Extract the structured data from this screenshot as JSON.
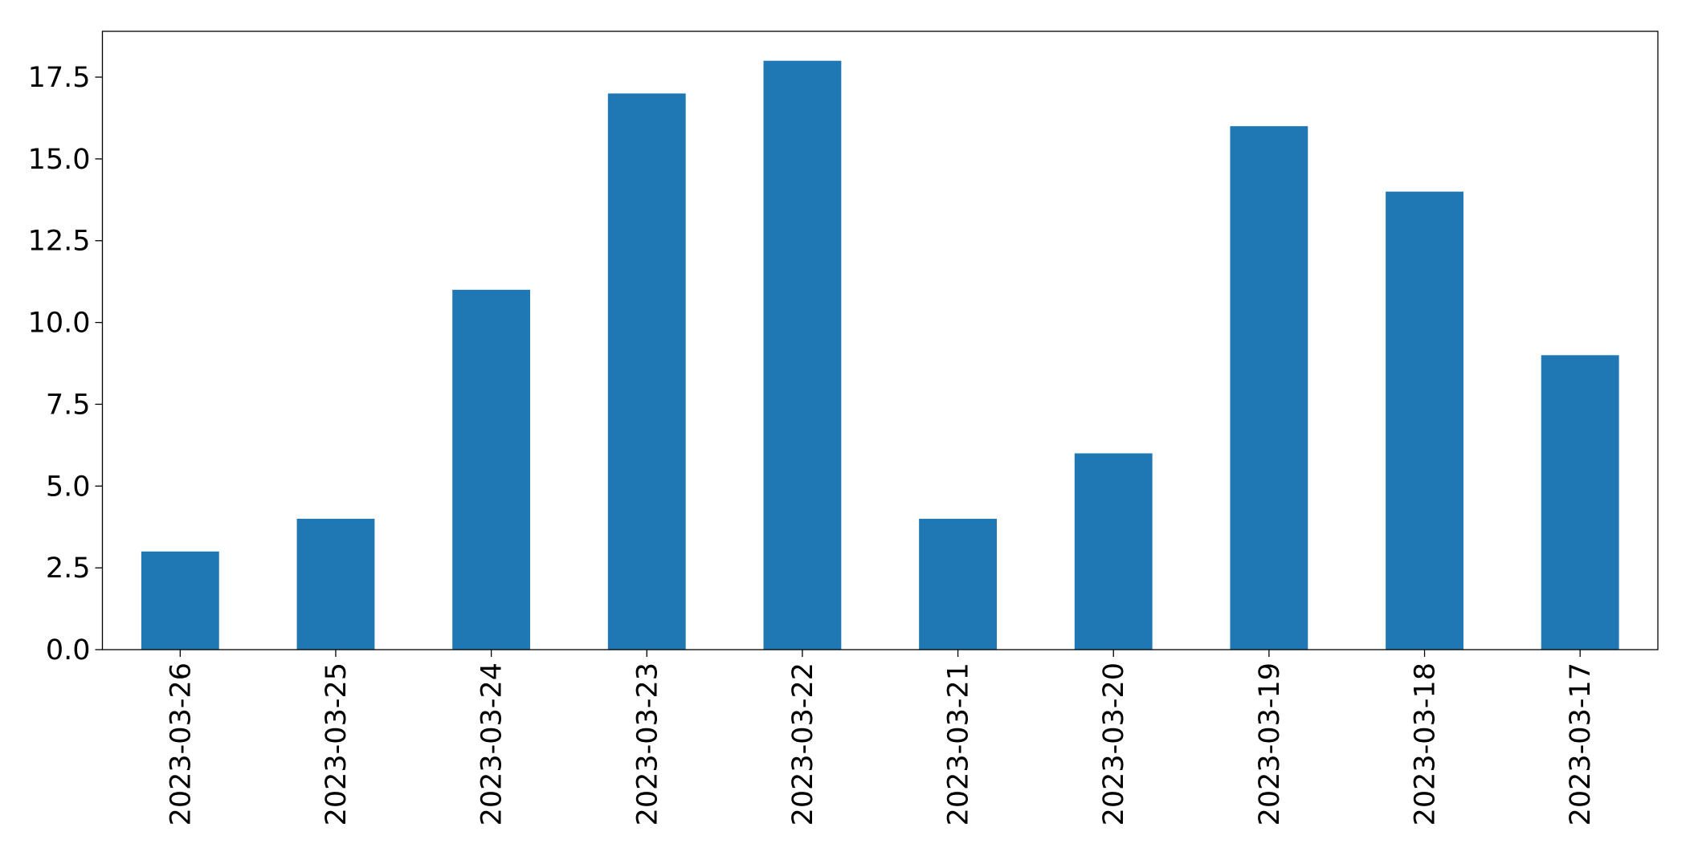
{
  "chart_data": {
    "type": "bar",
    "categories": [
      "2023-03-26",
      "2023-03-25",
      "2023-03-24",
      "2023-03-23",
      "2023-03-22",
      "2023-03-21",
      "2023-03-20",
      "2023-03-19",
      "2023-03-18",
      "2023-03-17"
    ],
    "values": [
      3,
      4,
      11,
      17,
      18,
      4,
      6,
      16,
      14,
      9
    ],
    "color": "#1f77b4",
    "ylim": [
      0,
      18.9
    ],
    "yticks": [
      {
        "value": 0,
        "label": "0.0"
      },
      {
        "value": 2.5,
        "label": "2.5"
      },
      {
        "value": 5,
        "label": "5.0"
      },
      {
        "value": 7.5,
        "label": "7.5"
      },
      {
        "value": 10,
        "label": "10.0"
      },
      {
        "value": 12.5,
        "label": "12.5"
      },
      {
        "value": 15,
        "label": "15.0"
      },
      {
        "value": 17.5,
        "label": "17.5"
      }
    ],
    "grid": false
  }
}
